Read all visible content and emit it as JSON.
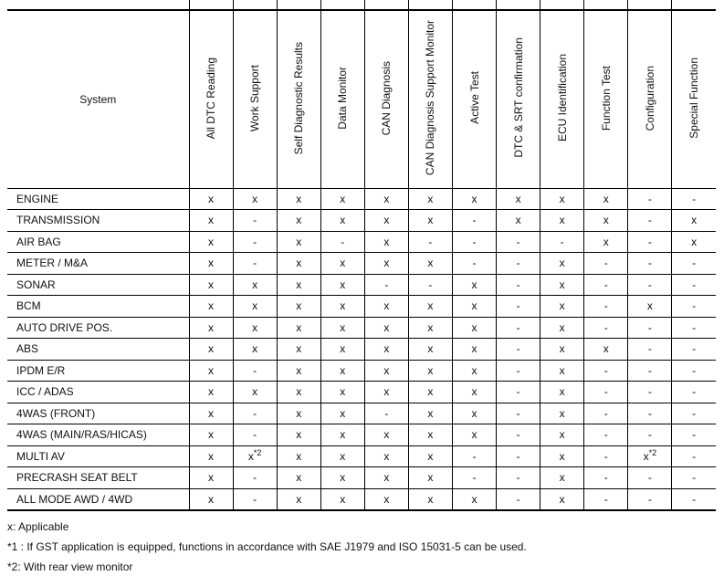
{
  "table": {
    "system_header": "System",
    "columns": [
      "All DTC Reading",
      "Work Support",
      "Self Diagnostic Results",
      "Data Monitor",
      "CAN Diagnosis",
      "CAN Diagnosis Support Monitor",
      "Active Test",
      "DTC & SRT confirmation",
      "ECU Identification",
      "Function Test",
      "Configuration",
      "Special Function"
    ],
    "applicable_mark": "x",
    "not_applicable_mark": "-",
    "rows": [
      {
        "system": "ENGINE",
        "values": [
          "x",
          "x",
          "x",
          "x",
          "x",
          "x",
          "x",
          "x",
          "x",
          "x",
          "-",
          "-"
        ]
      },
      {
        "system": "TRANSMISSION",
        "values": [
          "x",
          "-",
          "x",
          "x",
          "x",
          "x",
          "-",
          "x",
          "x",
          "x",
          "-",
          "x"
        ]
      },
      {
        "system": "AIR BAG",
        "values": [
          "x",
          "-",
          "x",
          "-",
          "x",
          "-",
          "-",
          "-",
          "-",
          "x",
          "-",
          "x"
        ]
      },
      {
        "system": "METER / M&A",
        "values": [
          "x",
          "-",
          "x",
          "x",
          "x",
          "x",
          "-",
          "-",
          "x",
          "-",
          "-",
          "-"
        ]
      },
      {
        "system": "SONAR",
        "values": [
          "x",
          "x",
          "x",
          "x",
          "-",
          "-",
          "x",
          "-",
          "x",
          "-",
          "-",
          "-"
        ]
      },
      {
        "system": "BCM",
        "values": [
          "x",
          "x",
          "x",
          "x",
          "x",
          "x",
          "x",
          "-",
          "x",
          "-",
          "x",
          "-"
        ]
      },
      {
        "system": "AUTO DRIVE POS.",
        "values": [
          "x",
          "x",
          "x",
          "x",
          "x",
          "x",
          "x",
          "-",
          "x",
          "-",
          "-",
          "-"
        ]
      },
      {
        "system": "ABS",
        "values": [
          "x",
          "x",
          "x",
          "x",
          "x",
          "x",
          "x",
          "-",
          "x",
          "x",
          "-",
          "-"
        ]
      },
      {
        "system": "IPDM E/R",
        "values": [
          "x",
          "-",
          "x",
          "x",
          "x",
          "x",
          "x",
          "-",
          "x",
          "-",
          "-",
          "-"
        ]
      },
      {
        "system": "ICC / ADAS",
        "values": [
          "x",
          "x",
          "x",
          "x",
          "x",
          "x",
          "x",
          "-",
          "x",
          "-",
          "-",
          "-"
        ]
      },
      {
        "system": "4WAS (FRONT)",
        "values": [
          "x",
          "-",
          "x",
          "x",
          "-",
          "x",
          "x",
          "-",
          "x",
          "-",
          "-",
          "-"
        ]
      },
      {
        "system": "4WAS (MAIN/RAS/HICAS)",
        "values": [
          "x",
          "-",
          "x",
          "x",
          "x",
          "x",
          "x",
          "-",
          "x",
          "-",
          "-",
          "-"
        ]
      },
      {
        "system": "MULTI AV",
        "values": [
          "x",
          "x*2",
          "x",
          "x",
          "x",
          "x",
          "-",
          "-",
          "x",
          "-",
          "x*2",
          "-"
        ]
      },
      {
        "system": "PRECRASH SEAT BELT",
        "values": [
          "x",
          "-",
          "x",
          "x",
          "x",
          "x",
          "-",
          "-",
          "x",
          "-",
          "-",
          "-"
        ]
      },
      {
        "system": "ALL MODE AWD / 4WD",
        "values": [
          "x",
          "-",
          "x",
          "x",
          "x",
          "x",
          "x",
          "-",
          "x",
          "-",
          "-",
          "-"
        ]
      }
    ]
  },
  "notes": [
    "x: Applicable",
    "*1 : If GST application is equipped, functions in accordance with SAE J1979 and ISO 15031-5 can be used.",
    "*2: With rear view monitor"
  ],
  "colors": {
    "background": "#ffffff",
    "border": "#000000",
    "text": "#111111"
  }
}
